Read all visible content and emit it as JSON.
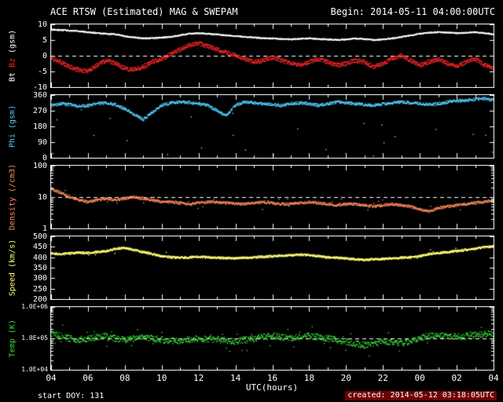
{
  "header": {
    "title": "ACE RTSW (Estimated) MAG & SWEPAM",
    "begin": "Begin: 2014-05-11 04:00:00UTC"
  },
  "footer": {
    "start_doy": "start DOY: 131",
    "created": "created: 2014-05-12 03:18:05UTC"
  },
  "colors": {
    "background": "#000000",
    "frame": "#ffffff",
    "text": "#ffffff",
    "bt": "#ffffff",
    "bz": "#ff2a2a",
    "phi": "#55ccff",
    "density": "#ff8c5a",
    "speed": "#ffff77",
    "temp": "#3bdb3b",
    "created_bg": "#6e0000"
  },
  "chart_data": {
    "type": "scatter",
    "title": "ACE RTSW (Estimated) MAG & SWEPAM",
    "x": {
      "label": "UTC(hours)",
      "start_hour": 4,
      "end_hour": 28,
      "step_hours": 0.5,
      "major_tick_every_hours": 2,
      "tick_labels": [
        "04",
        "06",
        "08",
        "10",
        "12",
        "14",
        "16",
        "18",
        "20",
        "22",
        "00",
        "02",
        "04"
      ]
    },
    "panels": [
      {
        "name": "bt-bz",
        "ylabel": "Bt Bz (gsm)",
        "ylabel_parts": [
          {
            "text": "Bt ",
            "color": "#ffffff"
          },
          {
            "text": "Bz ",
            "color": "#ff2a2a"
          },
          {
            "text": "(gsm)",
            "color": "#ffffff"
          }
        ],
        "yscale": "linear",
        "ylim": [
          -10,
          10
        ],
        "yticks": [
          -10,
          -5,
          0,
          5,
          10
        ],
        "ytick_labels": [
          "-10",
          "-5",
          "0",
          "5",
          "10"
        ],
        "dashed_at": 0,
        "series": [
          {
            "name": "Bt",
            "color": "#ffffff",
            "values": [
              8.3,
              8.2,
              8.0,
              7.8,
              7.5,
              7.2,
              7.0,
              6.8,
              6.2,
              5.8,
              5.5,
              5.6,
              5.8,
              6.0,
              6.5,
              7.0,
              7.2,
              7.0,
              6.8,
              6.5,
              6.3,
              6.0,
              5.8,
              5.6,
              5.5,
              5.3,
              5.2,
              5.4,
              5.5,
              5.3,
              5.2,
              5.0,
              5.2,
              5.5,
              5.3,
              5.0,
              5.2,
              5.5,
              6.0,
              6.5,
              7.0,
              7.3,
              7.5,
              7.4,
              7.2,
              7.3,
              7.5,
              7.2,
              6.8
            ]
          },
          {
            "name": "Bz",
            "color": "#ff2a2a",
            "values": [
              -0.5,
              -2.0,
              -3.5,
              -4.5,
              -5.0,
              -3.0,
              -1.5,
              -2.5,
              -4.0,
              -4.5,
              -3.5,
              -2.0,
              -1.0,
              0.5,
              2.0,
              3.5,
              4.0,
              3.0,
              2.0,
              1.0,
              0.0,
              -1.0,
              -2.0,
              -1.5,
              -0.5,
              -1.5,
              -2.5,
              -3.0,
              -2.0,
              -1.0,
              -2.0,
              -3.0,
              -2.5,
              -1.5,
              -2.0,
              -3.5,
              -2.5,
              -1.0,
              0.0,
              -1.5,
              -3.0,
              -2.0,
              -1.0,
              -2.5,
              -3.5,
              -2.0,
              -1.0,
              -3.0,
              -4.0
            ]
          }
        ]
      },
      {
        "name": "phi",
        "ylabel": "Phi (gsm)",
        "ylabel_parts": [
          {
            "text": "Phi (gsm)",
            "color": "#55ccff"
          }
        ],
        "yscale": "linear",
        "ylim": [
          0,
          360
        ],
        "yticks": [
          0,
          90,
          180,
          270,
          360
        ],
        "ytick_labels": [
          "0",
          "90",
          "180",
          "270",
          "360"
        ],
        "dashed_at": null,
        "series": [
          {
            "name": "Phi",
            "color": "#55ccff",
            "values": [
              300,
              310,
              305,
              295,
              300,
              310,
              315,
              305,
              280,
              250,
              220,
              260,
              300,
              315,
              320,
              315,
              310,
              300,
              270,
              240,
              300,
              320,
              315,
              310,
              305,
              300,
              310,
              315,
              310,
              300,
              310,
              320,
              315,
              310,
              305,
              300,
              310,
              315,
              320,
              315,
              310,
              305,
              310,
              320,
              325,
              330,
              335,
              340,
              330
            ]
          }
        ]
      },
      {
        "name": "density",
        "ylabel": "Density (/cm3)",
        "ylabel_parts": [
          {
            "text": "Density (/cm3)",
            "color": "#ff8c5a"
          }
        ],
        "yscale": "log",
        "ylim": [
          1,
          100
        ],
        "yticks": [
          1,
          10,
          100
        ],
        "ytick_labels": [
          "1",
          "10",
          "100"
        ],
        "dashed_at": 10,
        "series": [
          {
            "name": "Density",
            "color": "#ff8c5a",
            "values": [
              18,
              14,
              10,
              8,
              7,
              8,
              9,
              8,
              9,
              10,
              9,
              8,
              7,
              7,
              6.5,
              6,
              6.5,
              7,
              7,
              6.5,
              6,
              6,
              6.5,
              7,
              6.5,
              6,
              6,
              6.5,
              7,
              6.5,
              6,
              5.5,
              6,
              6,
              5.5,
              5,
              5.5,
              6,
              5.5,
              5,
              4,
              3.5,
              4.5,
              5,
              5.5,
              6,
              6.5,
              7,
              8
            ]
          }
        ]
      },
      {
        "name": "speed",
        "ylabel": "Speed (km/s)",
        "ylabel_parts": [
          {
            "text": "Speed (km/s)",
            "color": "#ffff77"
          }
        ],
        "yscale": "linear",
        "ylim": [
          200,
          500
        ],
        "yticks": [
          200,
          250,
          300,
          350,
          400,
          450,
          500
        ],
        "ytick_labels": [
          "200",
          "250",
          "300",
          "350",
          "400",
          "450",
          "500"
        ],
        "dashed_at": null,
        "series": [
          {
            "name": "Speed",
            "color": "#ffff77",
            "values": [
              420,
              415,
              418,
              422,
              420,
              425,
              430,
              440,
              445,
              435,
              425,
              415,
              405,
              400,
              398,
              400,
              402,
              400,
              398,
              396,
              395,
              398,
              400,
              402,
              405,
              408,
              410,
              412,
              410,
              405,
              400,
              398,
              395,
              390,
              388,
              390,
              392,
              395,
              398,
              400,
              405,
              415,
              420,
              425,
              430,
              435,
              440,
              448,
              452
            ]
          }
        ]
      },
      {
        "name": "temp",
        "ylabel": "Temp (K)",
        "ylabel_parts": [
          {
            "text": "Temp (K)",
            "color": "#3bdb3b"
          }
        ],
        "yscale": "log",
        "ylim": [
          10000,
          1000000
        ],
        "yticks": [
          10000,
          100000,
          1000000
        ],
        "ytick_labels": [
          "1.0E+04",
          "1.0E+05",
          "1.0E+06"
        ],
        "small_labels": true,
        "dashed_at": 100000,
        "series": [
          {
            "name": "Temp",
            "color": "#3bdb3b",
            "values": [
              150000,
              120000,
              100000,
              90000,
              100000,
              110000,
              120000,
              100000,
              90000,
              100000,
              110000,
              100000,
              90000,
              85000,
              80000,
              90000,
              100000,
              95000,
              90000,
              85000,
              80000,
              90000,
              100000,
              110000,
              120000,
              110000,
              100000,
              110000,
              120000,
              110000,
              100000,
              90000,
              80000,
              70000,
              60000,
              70000,
              80000,
              75000,
              70000,
              80000,
              100000,
              120000,
              130000,
              120000,
              110000,
              120000,
              130000,
              140000,
              130000
            ]
          }
        ]
      }
    ]
  }
}
